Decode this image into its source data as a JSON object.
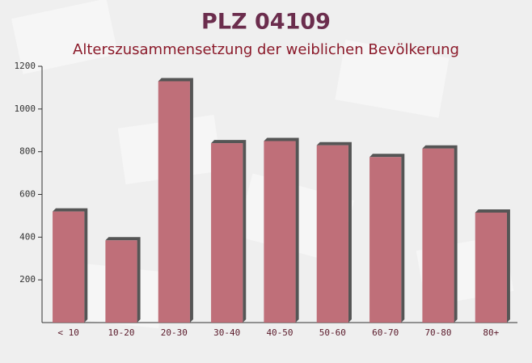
{
  "chart_data": {
    "type": "bar",
    "title": "PLZ 04109",
    "subtitle": "Alterszusammensetzung der weiblichen Bevölkerung",
    "categories": [
      "< 10",
      "10-20",
      "20-30",
      "30-40",
      "40-50",
      "50-60",
      "60-70",
      "70-80",
      "80+"
    ],
    "values": [
      520,
      385,
      1130,
      840,
      850,
      830,
      775,
      815,
      515
    ],
    "color": "#b9606c",
    "ylim": [
      0,
      1200
    ],
    "yticks": [
      200,
      400,
      600,
      800,
      1000,
      1200
    ],
    "grid": false
  }
}
